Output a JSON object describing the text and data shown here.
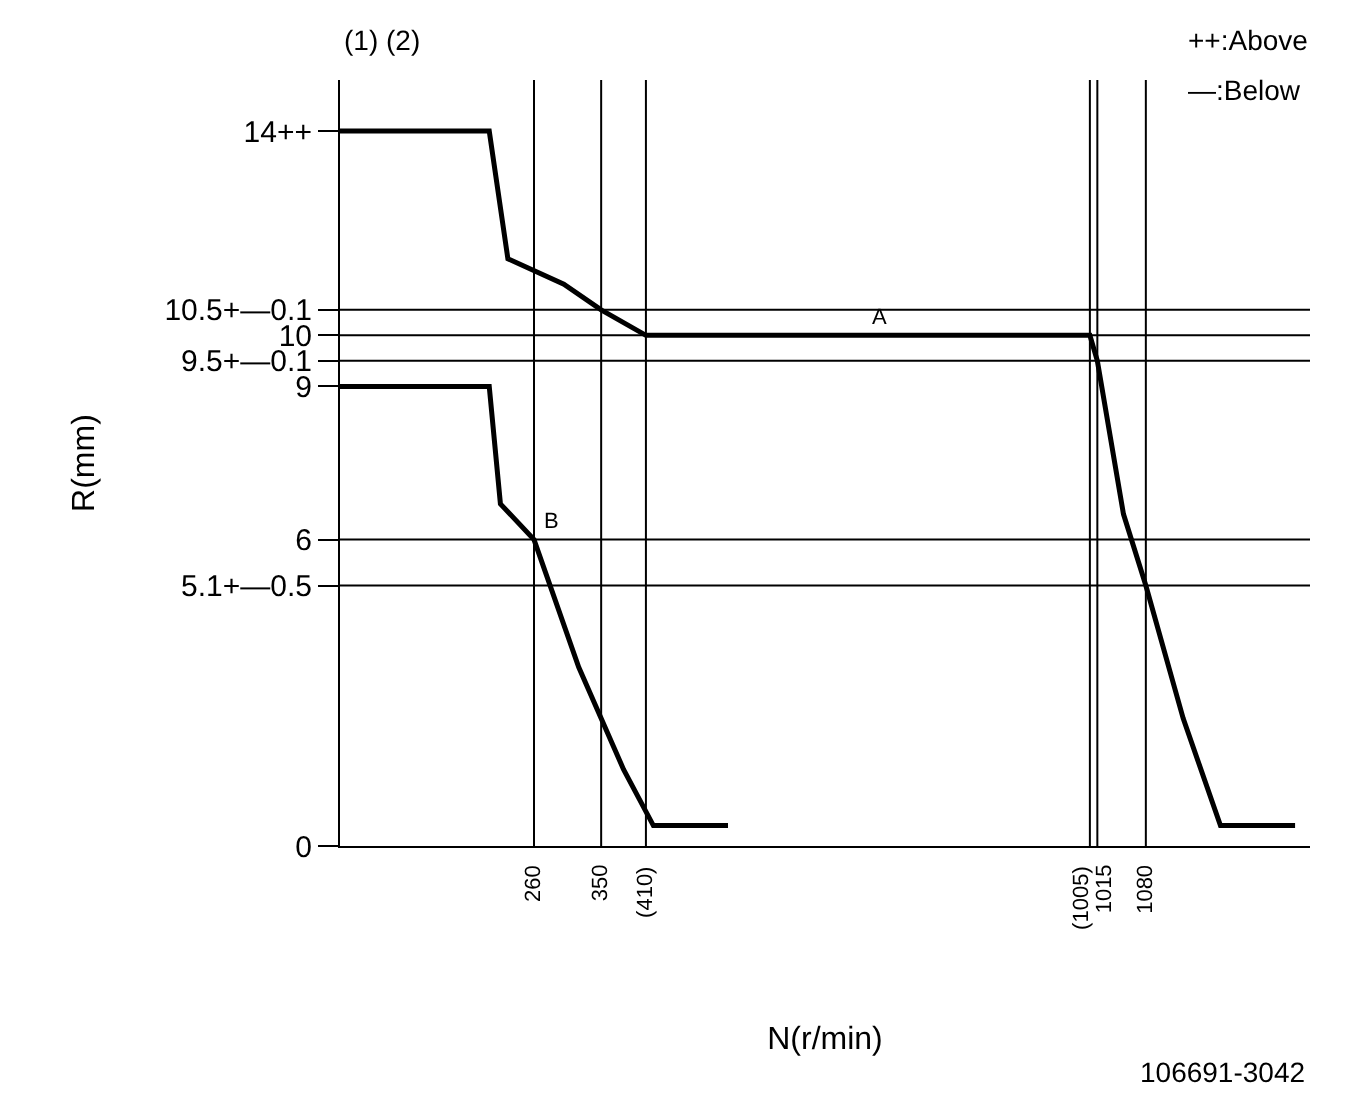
{
  "chart_data": {
    "type": "line",
    "xlabel": "N(r/min)",
    "ylabel": "R(mm)",
    "series": [
      {
        "color": "#000000",
        "x": [
          0,
          200,
          225,
          300,
          350,
          410,
          700,
          1005,
          1015,
          1050,
          1080,
          1130,
          1180,
          1280
        ],
        "values": [
          14,
          14,
          11.5,
          11,
          10.5,
          10,
          10,
          10,
          9.5,
          6.5,
          5.1,
          2.5,
          0.4,
          0.4
        ]
      },
      {
        "color": "#000000",
        "x": [
          0,
          200,
          215,
          260,
          320,
          380,
          420,
          520
        ],
        "values": [
          9,
          9,
          6.7,
          6,
          3.5,
          1.5,
          0.4,
          0.4
        ]
      }
    ],
    "xlim": [
      0,
      1300
    ],
    "ylim": [
      0,
      15
    ],
    "xticks": [
      260,
      350,
      {
        "value": 410,
        "label": "(410)"
      },
      {
        "value": 1005,
        "label": "(1005)"
      },
      1015,
      1080
    ],
    "yticks": [
      0,
      {
        "value": 5.1,
        "label": "5.1+—0.5"
      },
      6,
      9,
      {
        "value": 9.5,
        "label": "9.5+—0.1"
      },
      10,
      {
        "value": 10.5,
        "label": "10.5+—0.1"
      },
      {
        "value": 14,
        "label": "14++"
      }
    ],
    "ref_lines": [
      {
        "axis": "y",
        "value": 10.5,
        "color": "#000000"
      },
      {
        "axis": "y",
        "value": 10,
        "color": "#000000"
      },
      {
        "axis": "y",
        "value": 9.5,
        "color": "#000000"
      },
      {
        "axis": "y",
        "value": 6,
        "color": "#000000"
      },
      {
        "axis": "y",
        "value": 5.1,
        "color": "#000000"
      },
      {
        "axis": "x",
        "value": 260,
        "color": "#000000"
      },
      {
        "axis": "x",
        "value": 350,
        "color": "#000000"
      },
      {
        "axis": "x",
        "value": 410,
        "color": "#000000"
      },
      {
        "axis": "x",
        "value": 1005,
        "color": "#000000"
      },
      {
        "axis": "x",
        "value": 1015,
        "color": "#000000"
      },
      {
        "axis": "x",
        "value": 1080,
        "color": "#000000"
      }
    ],
    "annotations": [
      "(1) (2)",
      "++:Above",
      "—:Below",
      {
        "text": "A",
        "x": 700,
        "y": 10
      },
      {
        "text": "B",
        "x": 260,
        "y": 6
      },
      "106691-3042"
    ],
    "marker": "none",
    "line_style": "solid"
  }
}
